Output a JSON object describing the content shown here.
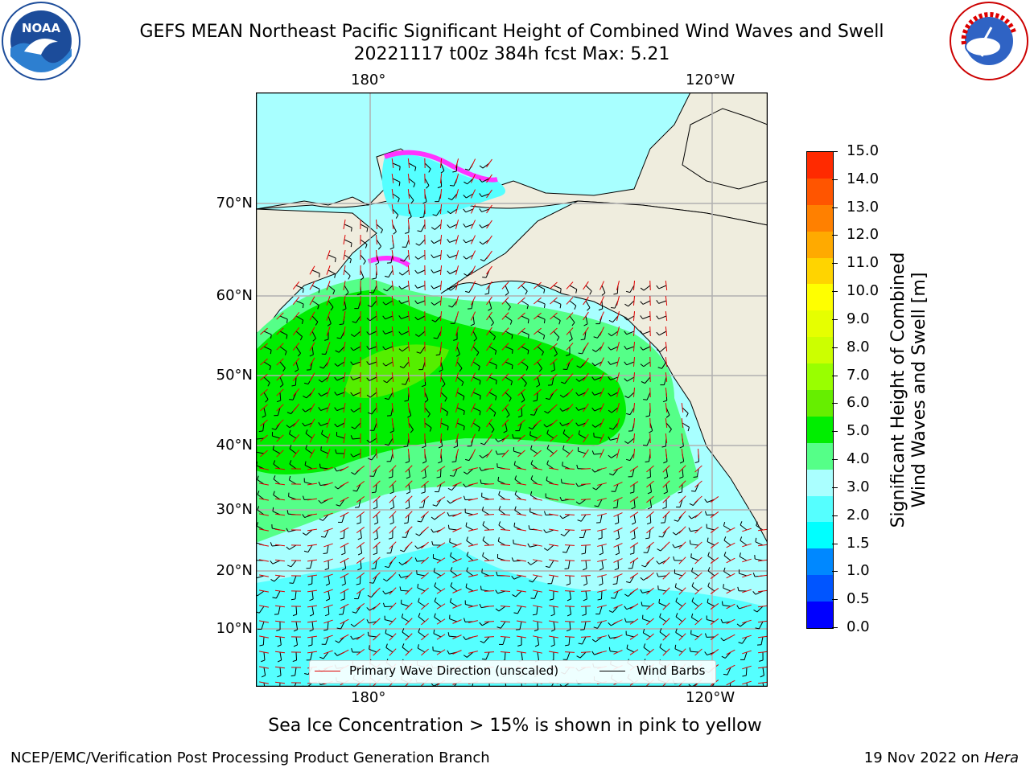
{
  "title": {
    "line1": "GEFS MEAN Northeast Pacific Significant Height of Combined Wind Waves and Swell",
    "line2": "20221117 t00z 384h fcst   Max: 5.21"
  },
  "logos": {
    "left_text": "NOAA",
    "right_text": "NATIONAL WEATHER SERVICE"
  },
  "axes": {
    "lon_top": [
      "180°",
      "120°W"
    ],
    "lon_bottom": [
      "180°",
      "120°W"
    ],
    "lat": [
      "70°N",
      "60°N",
      "50°N",
      "40°N",
      "30°N",
      "20°N",
      "10°N"
    ]
  },
  "legend": {
    "wave": "Primary Wave Direction (unscaled)",
    "wind": "Wind Barbs",
    "wave_color": "#e00000",
    "wind_color": "#000000"
  },
  "colorbar": {
    "title_line1": "Significant Height of Combined",
    "title_line2": "Wind Waves and Swell [m]",
    "ticks": [
      "15.0",
      "14.0",
      "13.0",
      "12.0",
      "11.0",
      "10.0",
      "9.0",
      "8.0",
      "7.0",
      "6.0",
      "5.0",
      "4.0",
      "3.0",
      "2.0",
      "1.5",
      "1.0",
      "0.5",
      "0.0"
    ],
    "colors": [
      "#ff0000",
      "#ff2a00",
      "#ff5500",
      "#ff8000",
      "#ffaa00",
      "#ffd400",
      "#ffff00",
      "#e6ff00",
      "#ccff00",
      "#99ff00",
      "#66ee00",
      "#00ee00",
      "#55ff88",
      "#aaffff",
      "#55ffff",
      "#00ffff",
      "#0088ff",
      "#0055ff",
      "#0000ff"
    ]
  },
  "map": {
    "land_color": "#efedde",
    "ice_note": "Sea Ice Concentration > 15% is shown in pink to yellow"
  },
  "footer": {
    "left": "NCEP/EMC/Verification Post Processing Product Generation Branch",
    "right_date": "19 Nov 2022 on",
    "right_host": "Hera"
  }
}
